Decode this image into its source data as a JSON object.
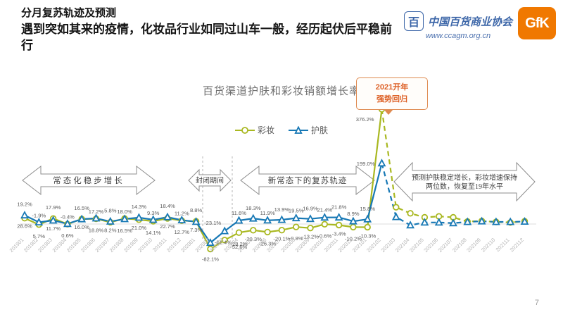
{
  "header": {
    "title": "分月复苏轨迹及预测",
    "subtitle": "遇到突如其来的疫情，化妆品行业如同过山车一般，经历起伏后平稳前行"
  },
  "logos": {
    "association_name": "中国百货商业协会",
    "association_url": "www.ccagm.org.cn",
    "emblem_glyph": "百",
    "gfk_label": "GfK",
    "gfk_color": "#f07800",
    "association_color": "#3c66a8"
  },
  "page": {
    "number": "7"
  },
  "annotations": {
    "callout": {
      "line1": "2021开年",
      "line2": "强势回归"
    },
    "arrows": [
      {
        "lines": [
          "常态化稳步增长"
        ]
      },
      {
        "lines": [
          "封闭期间"
        ]
      },
      {
        "lines": [
          "新常态下的复苏轨迹"
        ]
      },
      {
        "lines": [
          "预测护肤稳定增长，彩妆增速保持",
          "两位数，恢复至19年水平"
        ]
      }
    ]
  },
  "chart_data": {
    "type": "line",
    "title": "百货渠道护肤和彩妆销额增长率",
    "x": [
      "201901",
      "201902",
      "201903",
      "201904",
      "201905",
      "201906",
      "201907",
      "201908",
      "201909",
      "201910",
      "201911",
      "201912",
      "202001",
      "202002",
      "202003",
      "202004",
      "202005",
      "202006",
      "202007",
      "202008",
      "202009",
      "202010",
      "202011",
      "202012",
      "202101",
      "202102",
      "202103",
      "202104",
      "202105",
      "202106",
      "202107",
      "202108",
      "202109",
      "202110",
      "202111",
      "202112"
    ],
    "series": [
      {
        "name": "彩妆",
        "color": "#a9b821",
        "marker": "circle",
        "values": [
          19.2,
          -1.9,
          17.9,
          -0.4,
          16.5,
          17.2,
          5.8,
          18.0,
          14.3,
          9.3,
          18.4,
          11.2,
          8.8,
          -82.1,
          -52.6,
          -28.2,
          -20.3,
          -26.3,
          -20.1,
          -9.8,
          -13.2,
          -0.6,
          -3.4,
          -10.2,
          -10.3,
          376.2,
          55,
          35,
          22,
          25,
          22,
          8,
          10,
          7,
          5,
          9
        ],
        "labels": [
          "19.2%",
          "-1.9%",
          "17.9%",
          "-0.4%",
          "16.5%",
          "17.2%",
          "5.8%",
          "18.0%",
          "14.3%",
          "9.3%",
          "18.4%",
          "11.2%",
          "8.8%",
          "-82.1%",
          "-52.6%",
          "-28.2%",
          "-20.3%",
          "-26.3%",
          "-20.1%",
          "-9.8%",
          "-13.2%",
          "-0.6%",
          "-3.4%",
          "-10.2%",
          "-10.3%",
          "376.2%",
          null,
          null,
          null,
          null,
          null,
          null,
          null,
          null,
          null,
          null
        ]
      },
      {
        "name": "护肤",
        "color": "#1778b5",
        "marker": "triangle",
        "values": [
          28.6,
          5.7,
          11.7,
          0.6,
          16.0,
          18.8,
          8.2,
          16.5,
          21.0,
          14.1,
          22.7,
          12.7,
          7.3,
          -61.4,
          -23.1,
          11.6,
          18.3,
          11.9,
          13.9,
          19.5,
          16.9,
          21.4,
          21.8,
          8.9,
          15.8,
          199.0,
          23,
          -4,
          5,
          5,
          3,
          7,
          9,
          7,
          7,
          8
        ],
        "labels": [
          "28.6%",
          "5.7%",
          "11.7%",
          "0.6%",
          "16.0%",
          "18.8%",
          "8.2%",
          "16.5%",
          "21.0%",
          "14.1%",
          "22.7%",
          "12.7%",
          "7.3%",
          "-61.4%",
          "-23.1%",
          "11.6%",
          "18.3%",
          "11.9%",
          "13.9%",
          "19.5%",
          "16.9%",
          "21.4%",
          "21.8%",
          "8.9%",
          "15.8%",
          "199.0%",
          null,
          null,
          null,
          null,
          null,
          null,
          null,
          null,
          null,
          null
        ]
      }
    ],
    "prediction_start_index": 25,
    "prediction_note": "202103-202112 values are forecast (dashed, unlabeled)",
    "ylim": [
      -110,
      400
    ],
    "zero_line": true,
    "legend_position": "top-center",
    "grid": false
  }
}
